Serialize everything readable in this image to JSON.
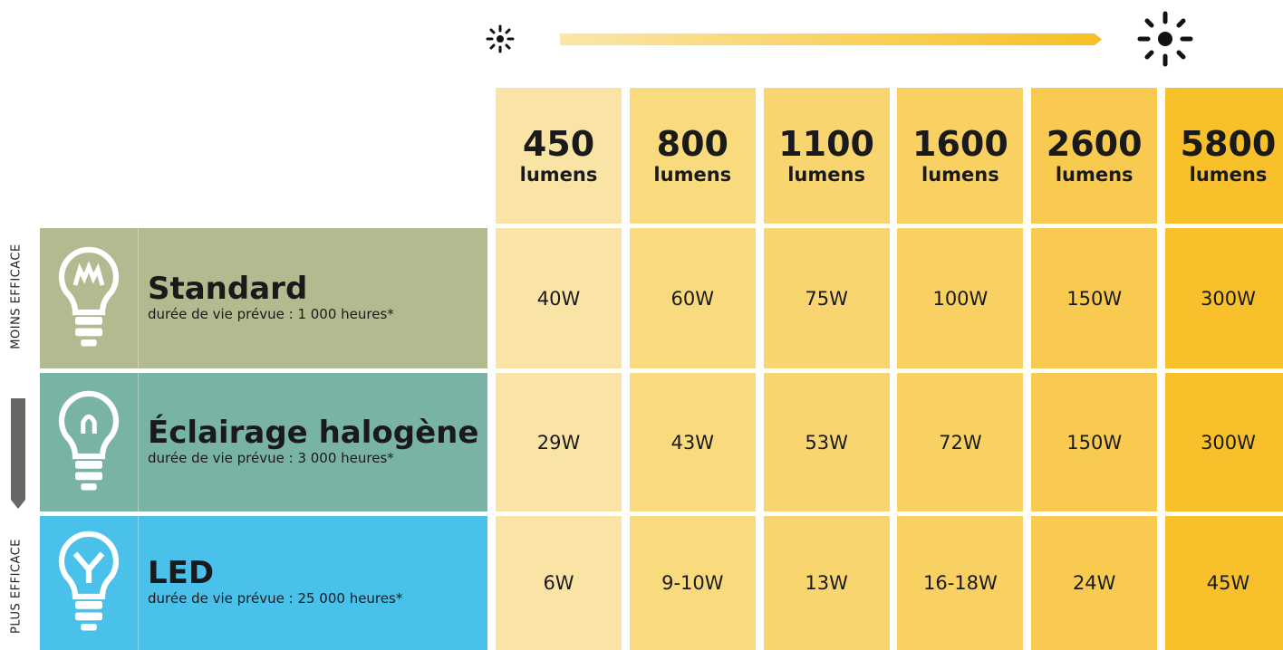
{
  "side_labels": {
    "top": "MOINS EFFICACE",
    "bottom": "PLUS EFFICACE"
  },
  "columns": [
    {
      "lumens": "450",
      "unit": "lumens"
    },
    {
      "lumens": "800",
      "unit": "lumens"
    },
    {
      "lumens": "1100",
      "unit": "lumens"
    },
    {
      "lumens": "1600",
      "unit": "lumens"
    },
    {
      "lumens": "2600",
      "unit": "lumens"
    },
    {
      "lumens": "5800",
      "unit": "lumens"
    }
  ],
  "rows": [
    {
      "name": "Standard",
      "life": "durée de vie prévue : 1 000 heures*",
      "values": [
        "40W",
        "60W",
        "75W",
        "100W",
        "150W",
        "300W"
      ]
    },
    {
      "name": "Éclairage halogène",
      "life": "durée de vie prévue : 3 000 heures*",
      "values": [
        "29W",
        "43W",
        "53W",
        "72W",
        "150W",
        "300W"
      ]
    },
    {
      "name": "LED",
      "life": "durée de vie prévue : 25 000 heures*",
      "values": [
        "6W",
        "9-10W",
        "13W",
        "16-18W",
        "24W",
        "45W"
      ]
    }
  ]
}
